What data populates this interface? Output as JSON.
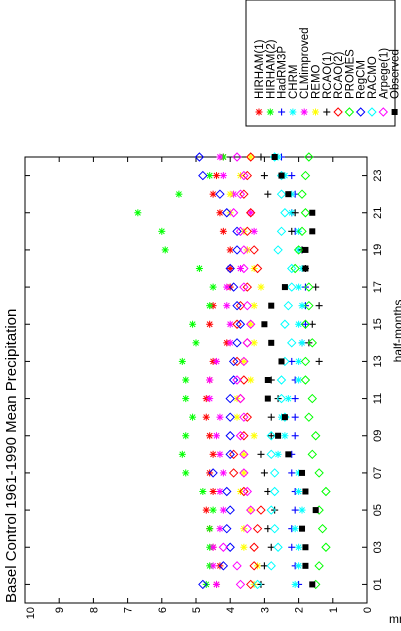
{
  "chart_data": {
    "type": "scatter",
    "title": "Basel Control 1961-1990 Mean Precipitation",
    "xlabel": "half-months",
    "ylabel": "mm",
    "xlim": [
      0,
      24
    ],
    "ylim": [
      0,
      10
    ],
    "x_tick_labels": [
      "01",
      "03",
      "05",
      "07",
      "09",
      "11",
      "13",
      "15",
      "17",
      "19",
      "21",
      "23"
    ],
    "y_tick_labels": [
      "0",
      "1",
      "2",
      "3",
      "4",
      "5",
      "6",
      "7",
      "8",
      "9",
      "10"
    ],
    "legend_position": "outside-right",
    "x": [
      1,
      2,
      3,
      4,
      5,
      6,
      7,
      8,
      9,
      10,
      11,
      12,
      13,
      14,
      15,
      16,
      17,
      18,
      19,
      20,
      21,
      22,
      23,
      24
    ],
    "series": [
      {
        "name": "HIRHAM(1)",
        "marker": "star",
        "color": "#ff0000",
        "values": [
          4.4,
          4.3,
          4.5,
          4.6,
          4.7,
          4.5,
          4.6,
          4.5,
          4.6,
          4.7,
          4.7,
          4.6,
          4.5,
          4.1,
          4.6,
          4.5,
          4.0,
          4.0,
          4.0,
          4.2,
          4.3,
          4.5,
          4.4,
          4.2
        ]
      },
      {
        "name": "HIRHAM(2)",
        "marker": "star",
        "color": "#00ff00",
        "values": [
          4.7,
          4.6,
          4.6,
          4.6,
          4.5,
          4.8,
          5.3,
          5.4,
          5.3,
          5.1,
          5.3,
          5.3,
          5.4,
          5.0,
          5.1,
          4.6,
          4.5,
          4.9,
          5.9,
          6.0,
          6.7,
          5.5,
          4.6,
          4.2
        ]
      },
      {
        "name": "HadRM3P",
        "marker": "plus",
        "color": "#0000ff",
        "values": [
          2.0,
          2.1,
          2.2,
          2.2,
          2.1,
          2.1,
          2.2,
          2.2,
          2.1,
          2.1,
          2.1,
          2.1,
          2.2,
          1.9,
          1.8,
          1.8,
          1.8,
          1.8,
          1.9,
          2.1,
          2.2,
          2.1,
          2.2,
          2.5
        ]
      },
      {
        "name": "CHRM",
        "marker": "star",
        "color": "#00ffff",
        "values": [
          2.1,
          2.0,
          2.0,
          2.1,
          1.9,
          2.0,
          2.0,
          2.6,
          2.4,
          2.5,
          2.3,
          2.0,
          2.0,
          1.9,
          2.0,
          1.9,
          2.0,
          1.9,
          2.0,
          2.0,
          2.2,
          2.2,
          2.4,
          2.6
        ]
      },
      {
        "name": "CLMimproved",
        "marker": "star",
        "color": "#ff00ff",
        "values": [
          4.4,
          4.5,
          4.5,
          4.3,
          4.2,
          4.3,
          4.2,
          4.3,
          4.4,
          4.3,
          4.6,
          4.6,
          4.4,
          4.0,
          4.0,
          4.1,
          4.1,
          3.7,
          3.5,
          3.3,
          3.4,
          3.9,
          4.2,
          4.3
        ]
      },
      {
        "name": "REMO",
        "marker": "star",
        "color": "#ffff00",
        "values": [
          3.3,
          3.2,
          3.6,
          3.6,
          3.4,
          3.7,
          3.6,
          3.6,
          3.3,
          3.8,
          3.8,
          3.4,
          3.6,
          3.3,
          3.4,
          3.3,
          3.1,
          3.3,
          3.5,
          3.6,
          4.0,
          4.0,
          3.7,
          3.4
        ]
      },
      {
        "name": "RCAO(1)",
        "marker": "plus",
        "color": "#000000",
        "values": [
          3.1,
          3.0,
          2.8,
          2.9,
          2.7,
          2.9,
          3.0,
          3.1,
          2.8,
          2.8,
          2.6,
          2.8,
          1.4,
          1.7,
          1.6,
          1.4,
          1.5,
          1.8,
          1.9,
          2.2,
          2.1,
          2.9,
          3.0,
          3.1
        ]
      },
      {
        "name": "RCAO(2)",
        "marker": "diamond",
        "color": "#ff0000",
        "values": [
          3.4,
          3.3,
          3.3,
          3.2,
          3.1,
          3.6,
          3.9,
          3.9,
          3.6,
          3.5,
          3.7,
          3.6,
          3.8,
          3.5,
          3.8,
          3.7,
          3.5,
          3.2,
          3.3,
          3.5,
          3.4,
          3.6,
          3.5,
          3.4
        ]
      },
      {
        "name": "PROMES",
        "marker": "diamond",
        "color": "#00ff00",
        "values": [
          1.5,
          1.4,
          1.2,
          1.3,
          1.4,
          1.2,
          1.4,
          1.6,
          1.5,
          1.7,
          1.6,
          1.8,
          1.8,
          1.6,
          1.8,
          1.7,
          1.7,
          2.1,
          2.0,
          1.9,
          1.8,
          1.9,
          1.8,
          1.7
        ]
      },
      {
        "name": "RegCM",
        "marker": "diamond",
        "color": "#0000ff",
        "values": [
          4.8,
          4.2,
          4.0,
          4.1,
          4.0,
          4.1,
          4.5,
          4.0,
          4.0,
          4.0,
          4.0,
          3.9,
          3.9,
          3.8,
          3.7,
          3.8,
          3.9,
          4.0,
          3.8,
          3.8,
          4.1,
          4.3,
          4.8,
          4.9
        ]
      },
      {
        "name": "RACMO",
        "marker": "diamond",
        "color": "#00ffff",
        "values": [
          3.2,
          2.8,
          2.6,
          2.7,
          2.8,
          2.7,
          2.7,
          2.8,
          2.8,
          2.4,
          2.5,
          2.5,
          2.4,
          2.2,
          2.4,
          2.3,
          2.2,
          2.2,
          2.6,
          2.5,
          2.4,
          2.5,
          2.5,
          2.7
        ]
      },
      {
        "name": "Arpege(1)",
        "marker": "diamond",
        "color": "#ff00ff",
        "values": [
          3.7,
          3.8,
          4.2,
          3.5,
          3.4,
          3.5,
          3.6,
          3.6,
          3.7,
          3.6,
          3.7,
          3.8,
          3.6,
          3.5,
          3.4,
          3.5,
          3.6,
          3.6,
          3.6,
          3.7,
          3.9,
          3.7,
          3.6,
          3.8
        ]
      },
      {
        "name": "Observed",
        "marker": "square",
        "color": "#000000",
        "values": [
          1.6,
          1.8,
          1.8,
          1.9,
          1.5,
          1.8,
          1.9,
          2.3,
          2.6,
          2.4,
          2.9,
          2.9,
          2.5,
          2.8,
          3.0,
          2.8,
          2.4,
          1.8,
          1.8,
          1.6,
          1.6,
          2.3,
          2.5,
          2.7
        ]
      }
    ]
  }
}
